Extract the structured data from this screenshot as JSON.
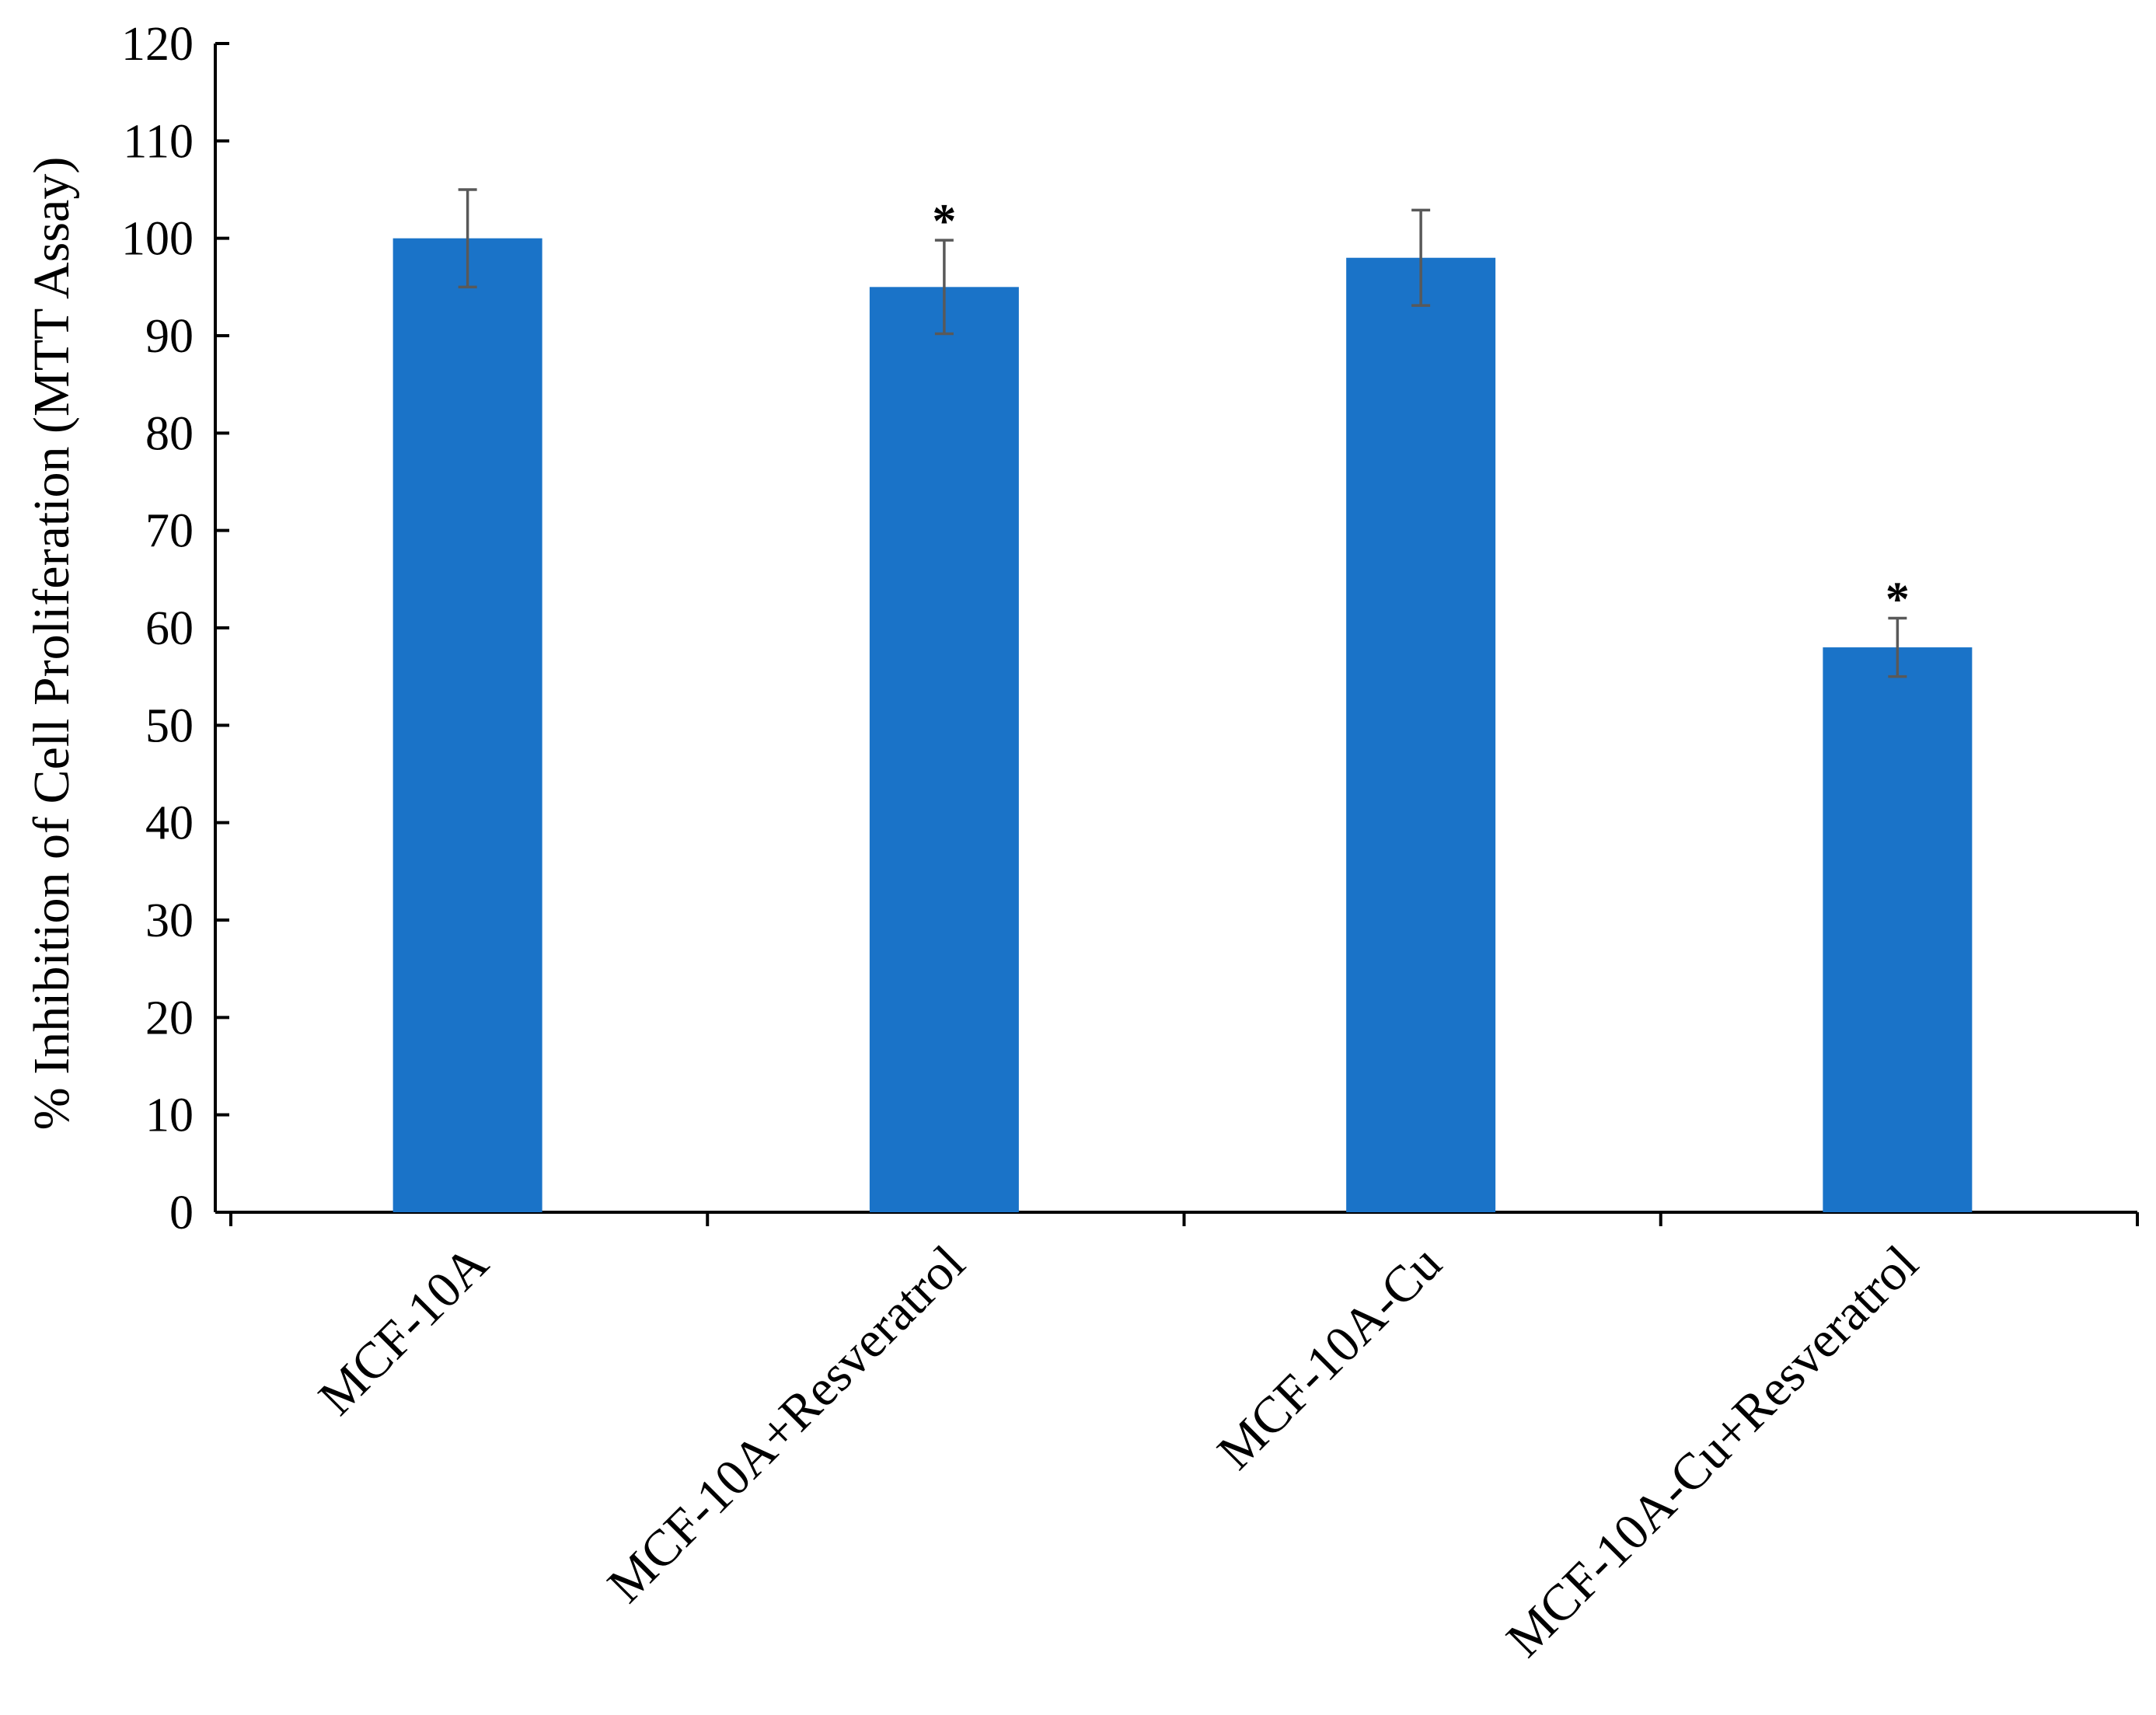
{
  "chart_data": {
    "type": "bar",
    "categories": [
      "MCF-10A",
      "MCF-10A+Resveratrol",
      "MCF-10A-Cu",
      "MCF-10A-Cu+Resveratrol"
    ],
    "values": [
      100,
      95,
      98,
      58
    ],
    "errors": [
      5,
      4.8,
      4.9,
      3
    ],
    "annotations": [
      "",
      "*",
      "",
      "*"
    ],
    "ylabel": "% Inhibition of Cell Proliferation (MTT Assay)",
    "xlabel": "",
    "ylim": [
      0,
      120
    ],
    "yticks": [
      0,
      10,
      20,
      30,
      40,
      50,
      60,
      70,
      80,
      90,
      100,
      110,
      120
    ],
    "bar_color": "#1a73c8",
    "error_color": "#595959",
    "grid": false,
    "legend": "none"
  }
}
